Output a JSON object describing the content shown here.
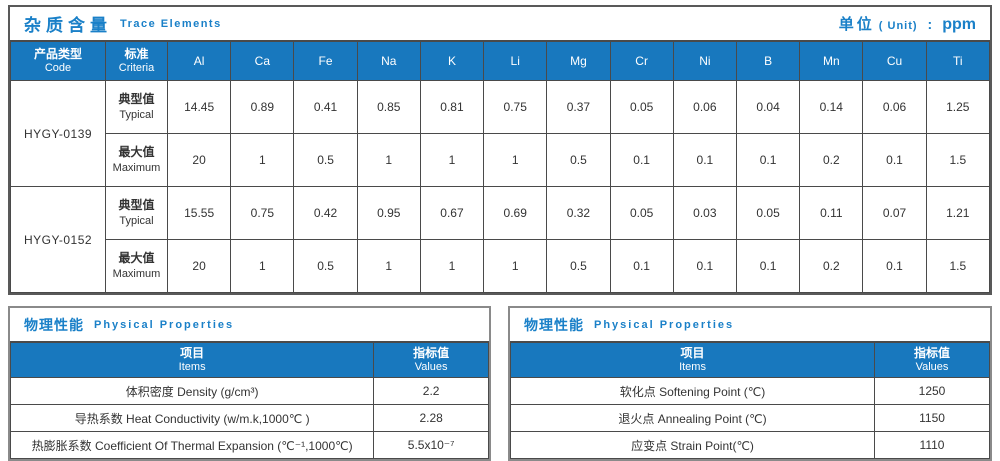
{
  "colors": {
    "accent_blue": "#1878be",
    "title_blue": "#1a80c8",
    "header_text": "#ffffff",
    "body_text": "#333333",
    "border_dark": "#4a4a4a",
    "border_outer_gray": "#8a8a8a"
  },
  "trace_section": {
    "title_cn": "杂质含量",
    "title_en": "Trace Elements",
    "unit_label_cn": "单位",
    "unit_label_en": "( Unit)",
    "unit_colon": ":",
    "unit_value": "ppm",
    "header": {
      "code_cn": "产品类型",
      "code_en": "Code",
      "criteria_cn": "标准",
      "criteria_en": "Criteria"
    },
    "elements": [
      "Al",
      "Ca",
      "Fe",
      "Na",
      "K",
      "Li",
      "Mg",
      "Cr",
      "Ni",
      "B",
      "Mn",
      "Cu",
      "Ti"
    ],
    "products": [
      {
        "code": "HYGY-0139",
        "rows": [
          {
            "criteria_cn": "典型值",
            "criteria_en": "Typical",
            "values": [
              "14.45",
              "0.89",
              "0.41",
              "0.85",
              "0.81",
              "0.75",
              "0.37",
              "0.05",
              "0.06",
              "0.04",
              "0.14",
              "0.06",
              "1.25"
            ]
          },
          {
            "criteria_cn": "最大值",
            "criteria_en": "Maximum",
            "values": [
              "20",
              "1",
              "0.5",
              "1",
              "1",
              "1",
              "0.5",
              "0.1",
              "0.1",
              "0.1",
              "0.2",
              "0.1",
              "1.5"
            ]
          }
        ]
      },
      {
        "code": "HYGY-0152",
        "rows": [
          {
            "criteria_cn": "典型值",
            "criteria_en": "Typical",
            "values": [
              "15.55",
              "0.75",
              "0.42",
              "0.95",
              "0.67",
              "0.69",
              "0.32",
              "0.05",
              "0.03",
              "0.05",
              "0.11",
              "0.07",
              "1.21"
            ]
          },
          {
            "criteria_cn": "最大值",
            "criteria_en": "Maximum",
            "values": [
              "20",
              "1",
              "0.5",
              "1",
              "1",
              "1",
              "0.5",
              "0.1",
              "0.1",
              "0.1",
              "0.2",
              "0.1",
              "1.5"
            ]
          }
        ]
      }
    ]
  },
  "physical_sections": [
    {
      "title_cn": "物理性能",
      "title_en": "Physical Properties",
      "col_items_cn": "项目",
      "col_items_en": "Items",
      "col_values_cn": "指标值",
      "col_values_en": "Values",
      "rows": [
        {
          "item": "体积密度 Density (g/cm³)",
          "value": "2.2"
        },
        {
          "item": "导热系数 Heat Conductivity (w/m.k,1000℃ )",
          "value": "2.28"
        },
        {
          "item": "热膨胀系数 Coefficient Of Thermal Expansion (℃⁻¹,1000℃)",
          "value": "5.5x10⁻⁷"
        }
      ]
    },
    {
      "title_cn": "物理性能",
      "title_en": "Physical Properties",
      "col_items_cn": "项目",
      "col_items_en": "Items",
      "col_values_cn": "指标值",
      "col_values_en": "Values",
      "rows": [
        {
          "item": "软化点 Softening Point (℃)",
          "value": "1250"
        },
        {
          "item": "退火点 Annealing Point (℃)",
          "value": "1150"
        },
        {
          "item": "应变点 Strain Point(℃)",
          "value": "1110"
        }
      ]
    }
  ]
}
